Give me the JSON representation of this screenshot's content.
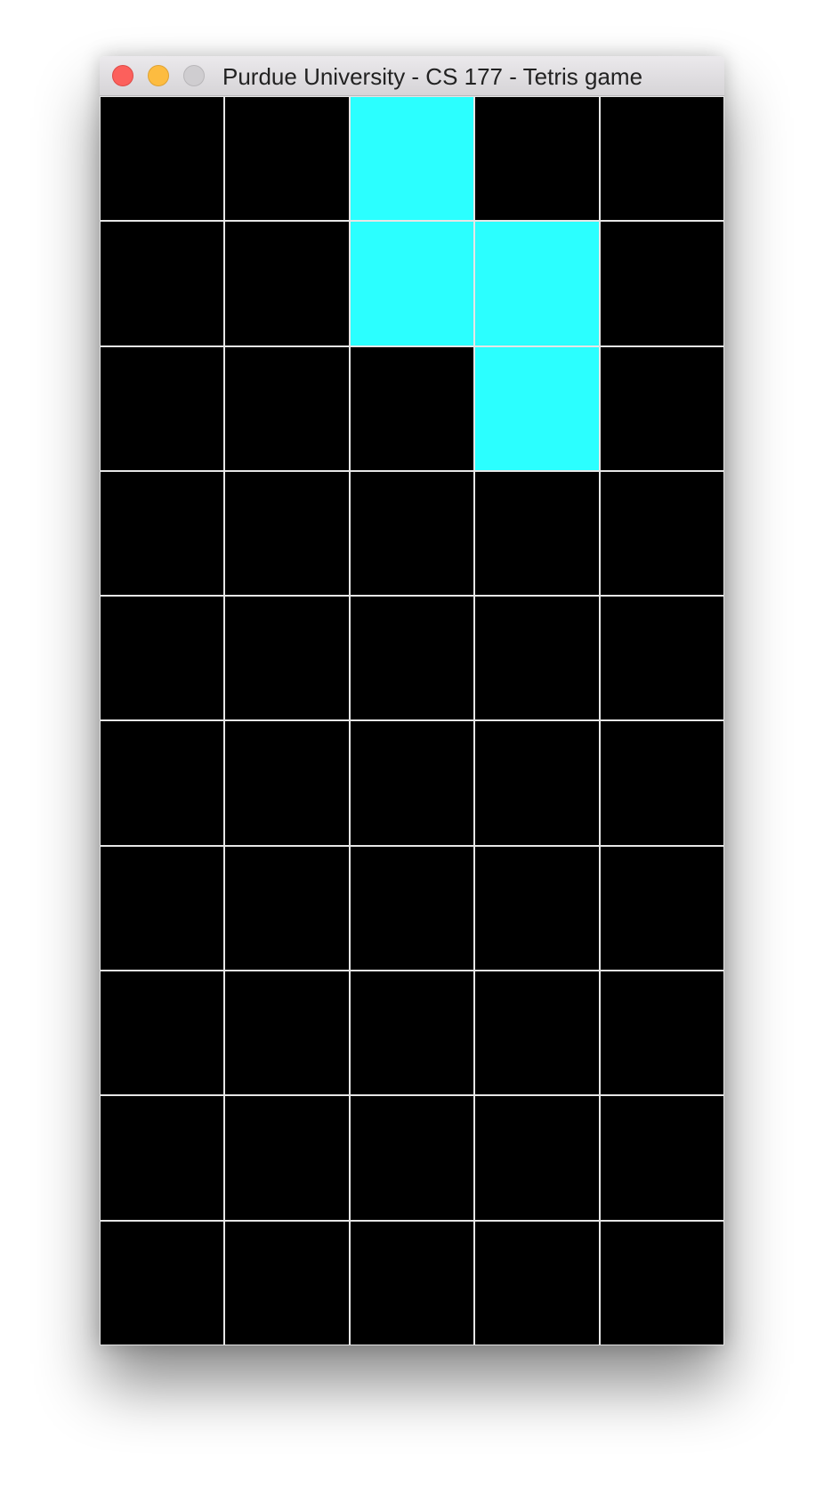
{
  "window": {
    "title": "Purdue University - CS 177 - Tetris game"
  },
  "board": {
    "columns": 5,
    "rows": 10,
    "empty_color": "#000000",
    "piece_color": "#2bffff",
    "grid_line_color": "#e6e6e6",
    "filled_cells": [
      {
        "row": 0,
        "col": 2
      },
      {
        "row": 1,
        "col": 2
      },
      {
        "row": 1,
        "col": 3
      },
      {
        "row": 2,
        "col": 3
      }
    ]
  }
}
